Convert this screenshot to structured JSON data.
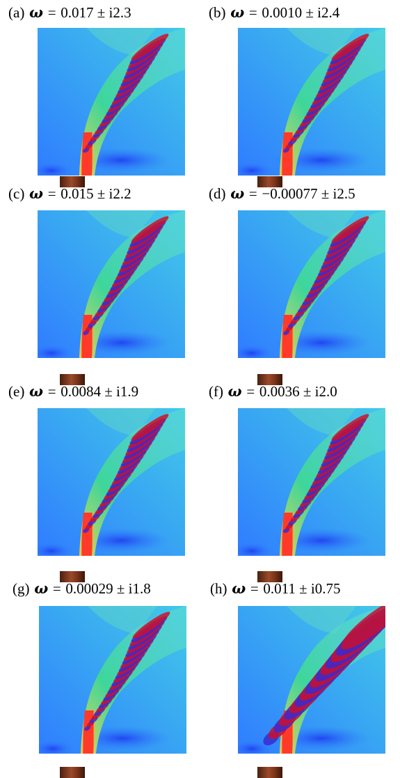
{
  "figure": {
    "panels": [
      {
        "label": "(a)",
        "omega_sym": "ω",
        "eq": "=",
        "value": "0.017 ± i2.3"
      },
      {
        "label": "(b)",
        "omega_sym": "ω",
        "eq": "=",
        "value": "0.0010 ± i2.4"
      },
      {
        "label": "(c)",
        "omega_sym": "ω",
        "eq": "=",
        "value": "0.015 ± i2.2"
      },
      {
        "label": "(d)",
        "omega_sym": "ω",
        "eq": "=",
        "value": "−0.00077 ± i2.5"
      },
      {
        "label": "(e)",
        "omega_sym": "ω",
        "eq": "=",
        "value": "0.0084 ± i1.9"
      },
      {
        "label": "(f)",
        "omega_sym": "ω",
        "eq": "=",
        "value": "0.0036 ± i2.0"
      },
      {
        "label": "(g)",
        "omega_sym": "ω",
        "eq": "=",
        "value": "0.00029 ± i1.8"
      },
      {
        "label": "(h)",
        "omega_sym": "ω",
        "eq": "=",
        "value": "0.011 ± i0.75"
      }
    ]
  },
  "colors": {
    "background_field": "#2f86ff",
    "jet_core": "#ff3a2a",
    "green_shear": "#3fe08a",
    "mode_red": "#c8102e",
    "mode_blue": "#3a2ad0",
    "nozzle": "#7a3418"
  }
}
